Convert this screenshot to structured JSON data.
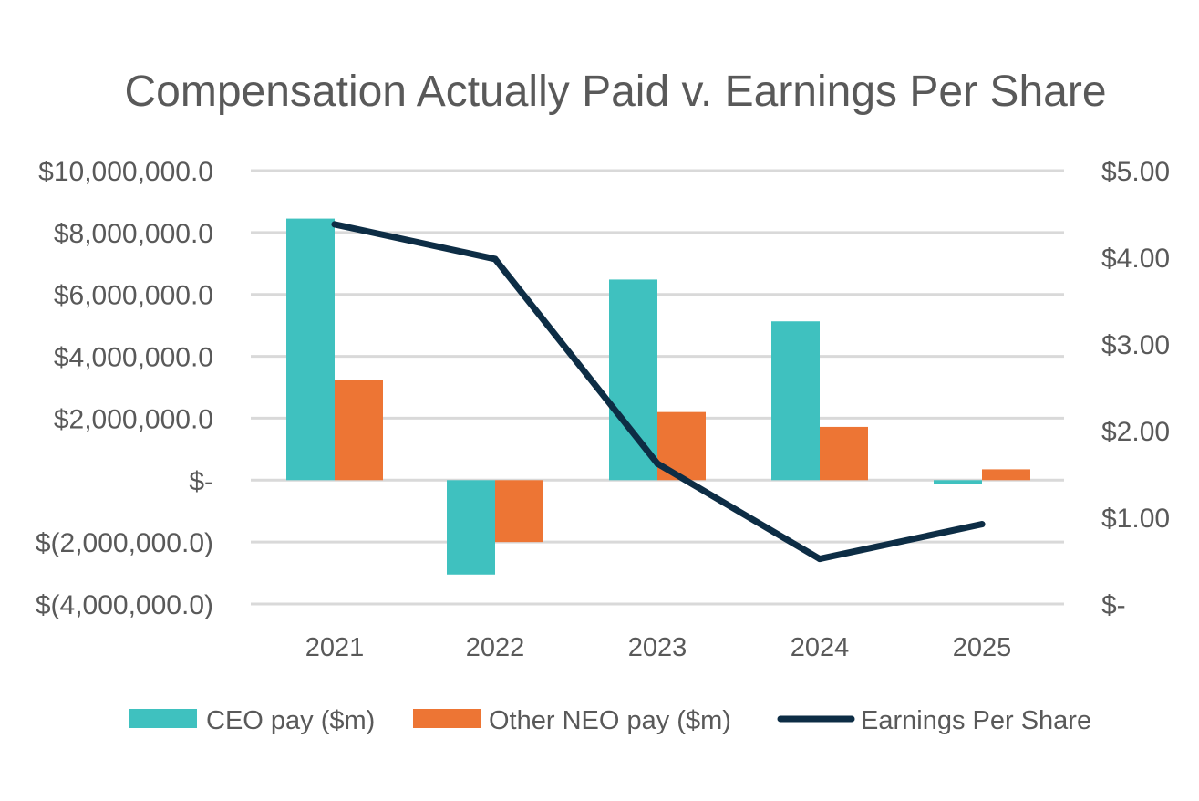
{
  "chart_data": {
    "type": "bar",
    "title": "Compensation Actually Paid v. Earnings Per Share",
    "categories": [
      "2021",
      "2022",
      "2023",
      "2024",
      "2025"
    ],
    "series": [
      {
        "name": "CEO pay ($m)",
        "kind": "bar",
        "axis": "left",
        "color": "#3fc1bf",
        "values": [
          8450000,
          -3050000,
          6480000,
          5130000,
          -130000
        ]
      },
      {
        "name": "Other NEO pay ($m)",
        "kind": "bar",
        "axis": "left",
        "color": "#ed7534",
        "values": [
          3230000,
          -2000000,
          2200000,
          1720000,
          350000
        ]
      },
      {
        "name": "Earnings Per Share",
        "kind": "line",
        "axis": "right",
        "color": "#0d2d45",
        "values": [
          4.38,
          3.98,
          1.62,
          0.52,
          0.92
        ]
      }
    ],
    "y_left": {
      "ylim": [
        -4000000,
        10000000
      ],
      "ticks": [
        10000000,
        8000000,
        6000000,
        4000000,
        2000000,
        0,
        -2000000,
        -4000000
      ],
      "tick_labels": [
        "$10,000,000.0",
        "$8,000,000.0",
        "$6,000,000.0",
        "$4,000,000.0",
        "$2,000,000.0",
        "$-",
        "$(2,000,000.0)",
        "$(4,000,000.0)"
      ]
    },
    "y_right": {
      "ylim": [
        0,
        5
      ],
      "ticks": [
        5,
        4,
        3,
        2,
        1,
        0
      ],
      "tick_labels": [
        "$5.00",
        "$4.00",
        "$3.00",
        "$2.00",
        "$1.00",
        "$-"
      ]
    },
    "grid": true,
    "legend_position": "bottom",
    "gridline_color": "#d9d9d9"
  }
}
